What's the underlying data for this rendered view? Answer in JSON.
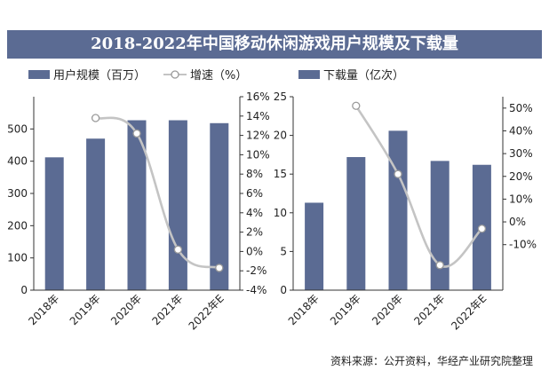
{
  "title": "2018-2022年中国移动休闲游戏用户规模及下载量",
  "source": "资料来源：公开资料，华经产业研究院整理",
  "colors": {
    "bar": "#5b6b93",
    "line": "#c4c4c4",
    "title_bg": "#5b6b93"
  },
  "chart_data": [
    {
      "type": "bar",
      "categories": [
        "2018年",
        "2019年",
        "2020年",
        "2021年",
        "2022年E"
      ],
      "series": [
        {
          "name": "用户规模（百万）",
          "type": "bar",
          "axis": "left",
          "values": [
            412,
            470,
            527,
            527,
            518
          ]
        },
        {
          "name": "增速（%）",
          "type": "line",
          "axis": "right",
          "values": [
            null,
            13.8,
            12.2,
            0.2,
            -1.7
          ]
        }
      ],
      "ylim_left": [
        0,
        600
      ],
      "yticks_left": [
        "0",
        "100",
        "200",
        "300",
        "400",
        "500"
      ],
      "ylim_right": [
        -4,
        16
      ],
      "yticks_right": [
        "-4%",
        "-2%",
        "0%",
        "2%",
        "4%",
        "6%",
        "8%",
        "10%",
        "12%",
        "14%",
        "16%"
      ],
      "legend_position": "top"
    },
    {
      "type": "bar",
      "categories": [
        "2018年",
        "2019年",
        "2020年",
        "2021年",
        "2022年E"
      ],
      "series": [
        {
          "name": "下载量（亿次）",
          "type": "bar",
          "axis": "left",
          "values": [
            11.3,
            17.2,
            20.6,
            16.7,
            16.2
          ]
        },
        {
          "name": "",
          "type": "line",
          "axis": "right",
          "values": [
            null,
            51,
            21,
            -19,
            -3
          ]
        }
      ],
      "ylim_left": [
        0,
        25
      ],
      "yticks_left": [
        "0",
        "5",
        "10",
        "15",
        "20",
        "25"
      ],
      "ylim_right": [
        -30,
        55
      ],
      "yticks_right": [
        "-10%",
        "0%",
        "10%",
        "20%",
        "30%",
        "40%",
        "50%"
      ],
      "legend_position": "top"
    }
  ]
}
